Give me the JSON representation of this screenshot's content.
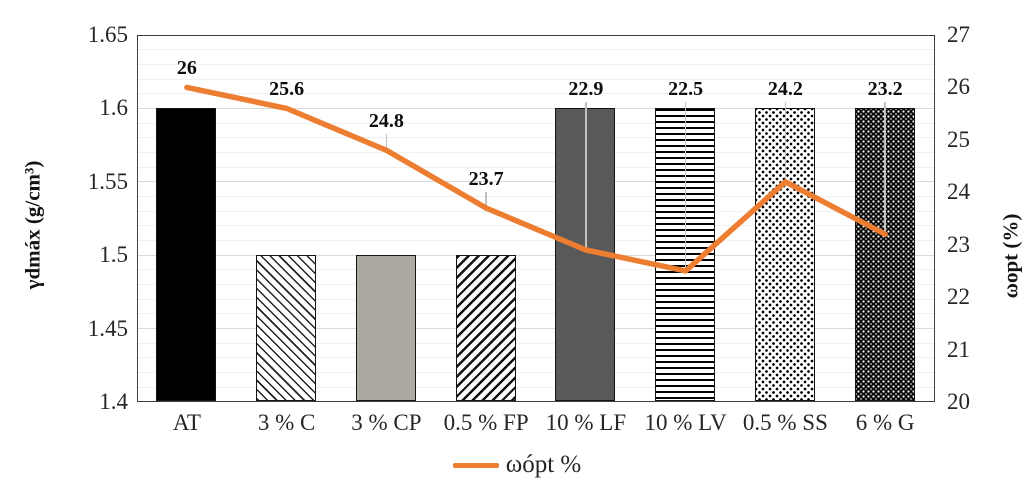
{
  "chart_data": {
    "type": "bar",
    "subtype": "bar-line-combo",
    "categories": [
      "AT",
      "3 % C",
      "3 % CP",
      "0.5 % FP",
      "10 % LF",
      "10 % LV",
      "0.5 % SS",
      "6 % G"
    ],
    "bar_series": {
      "name": "γdmáx",
      "axis": "left",
      "values": [
        1.6,
        1.5,
        1.5,
        1.5,
        1.6,
        1.6,
        1.6,
        1.6
      ],
      "patterns": [
        "solid-black",
        "hatch-back",
        "solid-gray",
        "hatch-forward",
        "solid-darkgray",
        "stripes-horizontal",
        "dots-light",
        "dots-dark"
      ]
    },
    "line_series": {
      "name": "ωópt %",
      "axis": "right",
      "values": [
        26,
        25.6,
        24.8,
        23.7,
        22.9,
        22.5,
        24.2,
        23.2
      ],
      "data_labels": [
        "26",
        "25.6",
        "24.8",
        "23.7",
        "22.9",
        "22.5",
        "24.2",
        "23.2"
      ],
      "color": "#ED7D31"
    },
    "left_axis": {
      "title": "γdmáx (g/cm³)",
      "min": 1.4,
      "max": 1.65,
      "major_step": 0.05,
      "minor_step": 0.01,
      "tick_labels": [
        "1.65",
        "1.6",
        "1.55",
        "1.5",
        "1.45",
        "1.4"
      ],
      "tick_values": [
        1.65,
        1.6,
        1.55,
        1.5,
        1.45,
        1.4
      ]
    },
    "right_axis": {
      "title": "ωopt (%)",
      "min": 20,
      "max": 27,
      "major_step": 1,
      "tick_labels": [
        "27",
        "26",
        "25",
        "24",
        "23",
        "22",
        "21",
        "20"
      ],
      "tick_values": [
        27,
        26,
        25,
        24,
        23,
        22,
        21,
        20
      ]
    },
    "legend": {
      "position": "bottom",
      "entries": [
        {
          "label": "ωópt %",
          "type": "line",
          "color": "#ED7D31"
        }
      ]
    },
    "grid": {
      "major_color": "#d9d9d9",
      "minor_color": "#f0f0f0",
      "minor_on": true
    }
  }
}
